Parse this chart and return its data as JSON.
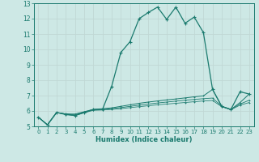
{
  "xlabel": "Humidex (Indice chaleur)",
  "bg_color": "#cde8e5",
  "grid_color": "#b0d4d0",
  "line_color": "#1a7a6e",
  "xlim": [
    -0.5,
    23.5
  ],
  "ylim": [
    5,
    13
  ],
  "xticks": [
    0,
    1,
    2,
    3,
    4,
    5,
    6,
    7,
    8,
    9,
    10,
    11,
    12,
    13,
    14,
    15,
    16,
    17,
    18,
    19,
    20,
    21,
    22,
    23
  ],
  "yticks": [
    5,
    6,
    7,
    8,
    9,
    10,
    11,
    12,
    13
  ],
  "series": [
    [
      5.6,
      5.1,
      5.9,
      5.8,
      5.7,
      5.9,
      6.1,
      6.1,
      7.6,
      9.8,
      10.5,
      12.0,
      12.4,
      12.75,
      11.95,
      12.75,
      11.7,
      12.1,
      11.1,
      7.4,
      6.3,
      6.1,
      7.25,
      7.1
    ],
    [
      5.6,
      5.1,
      5.9,
      5.8,
      5.8,
      5.95,
      6.1,
      6.15,
      6.2,
      6.3,
      6.4,
      6.5,
      6.58,
      6.65,
      6.72,
      6.78,
      6.85,
      6.92,
      6.98,
      7.4,
      6.3,
      6.1,
      6.55,
      7.1
    ],
    [
      5.6,
      5.1,
      5.9,
      5.8,
      5.75,
      5.92,
      6.08,
      6.1,
      6.15,
      6.22,
      6.3,
      6.38,
      6.45,
      6.52,
      6.58,
      6.64,
      6.7,
      6.75,
      6.8,
      6.84,
      6.3,
      6.1,
      6.45,
      6.7
    ],
    [
      5.6,
      5.1,
      5.9,
      5.75,
      5.7,
      5.88,
      6.04,
      6.06,
      6.1,
      6.15,
      6.22,
      6.28,
      6.34,
      6.4,
      6.45,
      6.5,
      6.55,
      6.6,
      6.65,
      6.68,
      6.28,
      6.08,
      6.38,
      6.55
    ]
  ]
}
